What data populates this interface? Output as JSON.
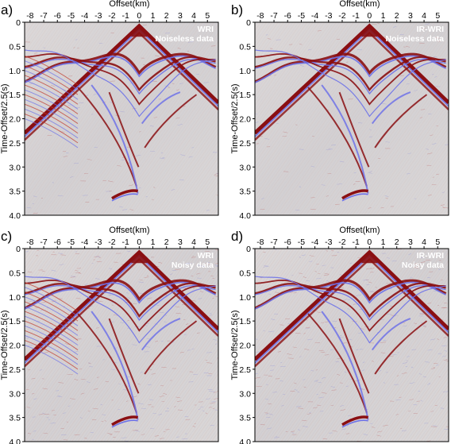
{
  "figure": {
    "x_axis_title": "Offset(km)",
    "y_axis_title": "Time-Offset/2.5(s)",
    "x_ticks": [
      -8,
      -7,
      -6,
      -5,
      -4,
      -3,
      -2,
      -1,
      0,
      1,
      2,
      3,
      4,
      5
    ],
    "y_ticks": [
      "0",
      "0.5",
      "1.0",
      "1.5",
      "2.0",
      "2.5",
      "3.0",
      "3.5",
      "4.0"
    ],
    "colors": {
      "positive": "#8a0f12",
      "negative": "#6e72e8",
      "background": "#d9d6d6"
    }
  },
  "panels": [
    {
      "label": "a)",
      "method": "WRI",
      "data_type": "Noiseless data"
    },
    {
      "label": "b)",
      "method": "IR-WRI",
      "data_type": "Noiseless data"
    },
    {
      "label": "c)",
      "method": "WRI",
      "data_type": "Noisy data"
    },
    {
      "label": "d)",
      "method": "IR-WRI",
      "data_type": "Noisy data"
    }
  ]
}
